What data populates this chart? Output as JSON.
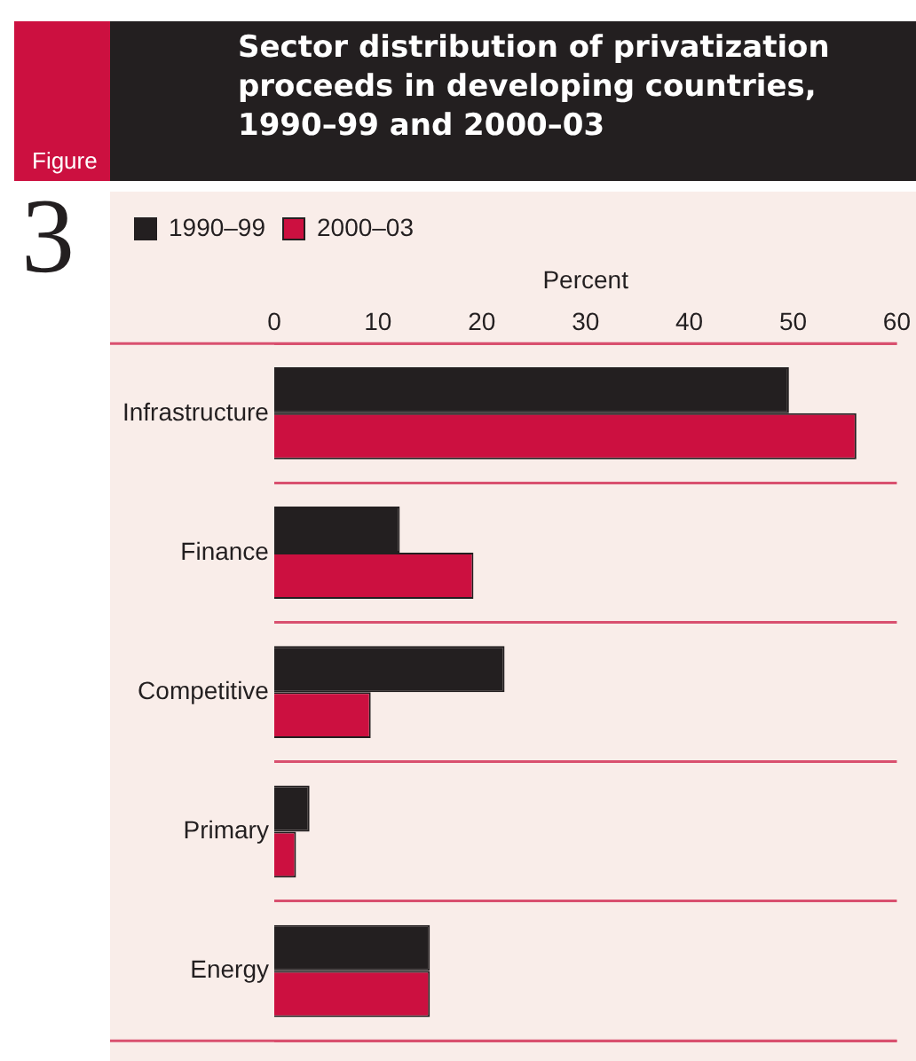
{
  "chart_data": {
    "type": "bar",
    "orientation": "horizontal",
    "title": "Sector distribution of privatization proceeds in developing countries, 1990–99 and 2000–03",
    "xlabel": "Percent",
    "annotations": [
      "Figure",
      "3"
    ],
    "categories": [
      "Infrastructure",
      "Finance",
      "Competitive",
      "Primary",
      "Energy"
    ],
    "series": [
      {
        "name": "1990–99",
        "color": "#231f20",
        "values": [
          49.6,
          12.1,
          22.2,
          3.4,
          15.0
        ]
      },
      {
        "name": "2000–03",
        "color": "#cc1040",
        "values": [
          56.1,
          19.2,
          9.3,
          2.1,
          15.0
        ]
      }
    ],
    "xlim": [
      0,
      60
    ],
    "xticks": [
      0,
      10,
      20,
      30,
      40,
      50,
      60
    ],
    "grid": "y",
    "legend": "top left"
  }
}
